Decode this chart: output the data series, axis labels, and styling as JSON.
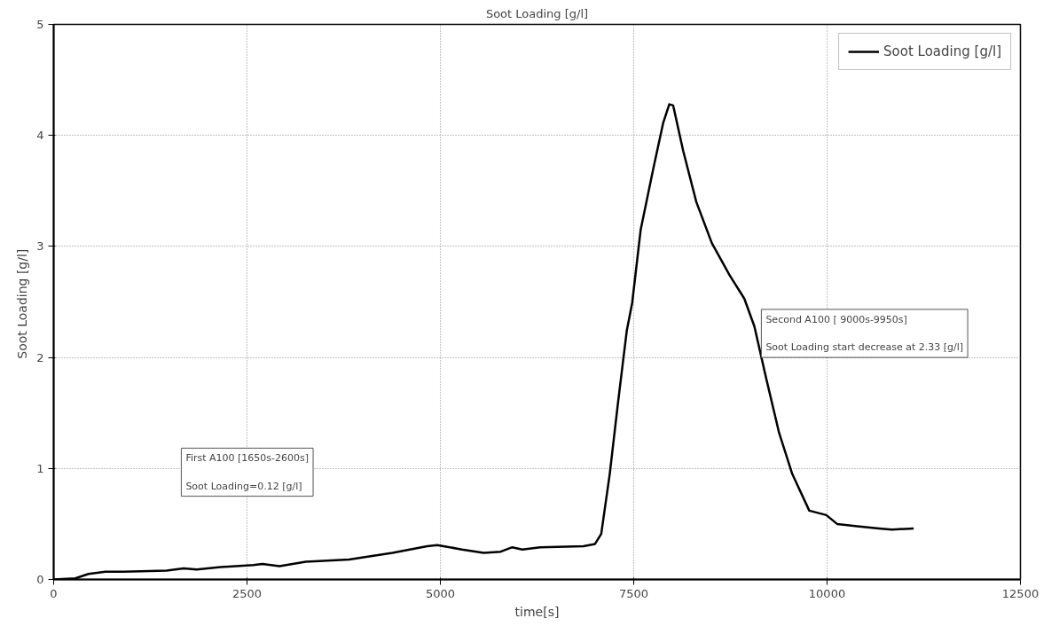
{
  "chart_data": {
    "type": "line",
    "title": "Soot Loading [g/l]",
    "xlabel": "time[s]",
    "ylabel": "Soot Loading  [g/l]",
    "x": [
      0,
      280,
      450,
      670,
      900,
      1460,
      1680,
      1850,
      2130,
      2580,
      2700,
      2920,
      3260,
      3820,
      4380,
      4830,
      4960,
      5280,
      5560,
      5780,
      5930,
      6060,
      6290,
      6850,
      7000,
      7080,
      7190,
      7300,
      7410,
      7480,
      7590,
      7750,
      7880,
      7960,
      8010,
      8140,
      8310,
      8510,
      8740,
      8930,
      9060,
      9210,
      9380,
      9550,
      9770,
      9990,
      10130,
      10390,
      10670,
      10840,
      11120
    ],
    "series": [
      {
        "name": "Soot Loading [g/l]",
        "color": "#000000",
        "values": [
          0,
          0.01,
          0.05,
          0.07,
          0.07,
          0.08,
          0.1,
          0.09,
          0.11,
          0.13,
          0.14,
          0.12,
          0.16,
          0.18,
          0.24,
          0.3,
          0.31,
          0.27,
          0.24,
          0.25,
          0.29,
          0.27,
          0.29,
          0.3,
          0.32,
          0.41,
          0.95,
          1.61,
          2.24,
          2.49,
          3.15,
          3.69,
          4.11,
          4.28,
          4.27,
          3.86,
          3.4,
          3.03,
          2.74,
          2.53,
          2.28,
          1.82,
          1.32,
          0.95,
          0.62,
          0.58,
          0.5,
          0.48,
          0.46,
          0.45,
          0.46
        ]
      }
    ],
    "xlim": [
      0,
      12500
    ],
    "xticks": [
      0,
      2500,
      5000,
      7500,
      10000,
      12500
    ],
    "ylim": [
      0,
      5
    ],
    "yticks": [
      0,
      1,
      2,
      3,
      4,
      5
    ],
    "grid": true,
    "legend": "top right",
    "marker": "none",
    "line_style": "solid",
    "annotations": [
      "First A100 [1650s-2600s]\n\nSoot Loading=0.12 [g/l]",
      "Second A100 [ 9000s-9950s]\n\nSoot Loading start decrease at 2.33 [g/l]"
    ]
  }
}
